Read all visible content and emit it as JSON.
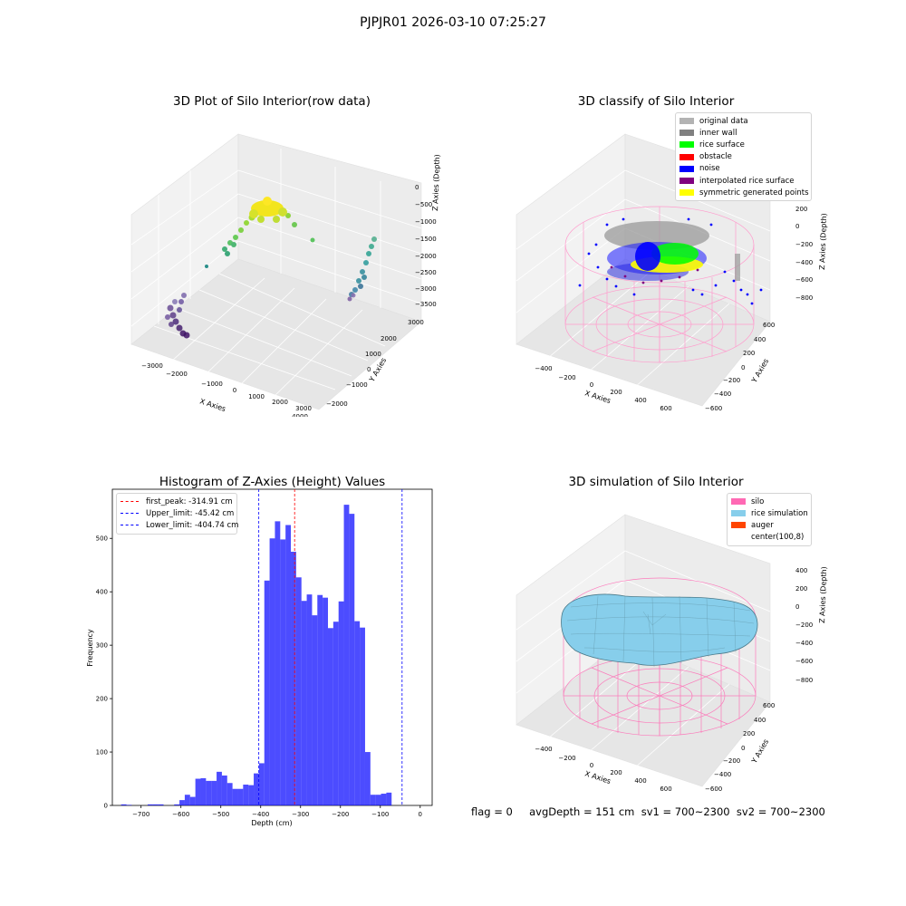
{
  "suptitle": "PJPJR01 2026-03-10 07:25:27",
  "panels": {
    "raw": {
      "title": "3D Plot of Silo Interior(row data)",
      "xlabel": "X Axies",
      "ylabel": "Y Axies",
      "zlabel": "Z Axies (Depth)",
      "x_ticks": [
        "−3000",
        "−2000",
        "−1000",
        "0",
        "1000",
        "2000",
        "3000",
        "4000"
      ],
      "y_ticks": [
        "3000",
        "2000",
        "1000",
        "0",
        "−1000",
        "−2000"
      ],
      "z_ticks": [
        "0",
        "−500",
        "−1000",
        "−1500",
        "−2000",
        "−2500",
        "−3000",
        "−3500"
      ]
    },
    "classify": {
      "title": "3D classify of Silo Interior",
      "xlabel": "X Axies",
      "ylabel": "Y Axies",
      "zlabel": "Z Axies (Depth)",
      "x_ticks": [
        "−400",
        "−200",
        "0",
        "200",
        "400",
        "600"
      ],
      "y_ticks": [
        "600",
        "400",
        "200",
        "0",
        "−200",
        "−400",
        "−600"
      ],
      "z_ticks": [
        "200",
        "0",
        "−200",
        "−400",
        "−600",
        "−800"
      ],
      "legend": [
        {
          "label": "original data",
          "color": "#b3b3b3"
        },
        {
          "label": "inner wall",
          "color": "#808080"
        },
        {
          "label": "rice surface",
          "color": "#00ff00"
        },
        {
          "label": "obstacle",
          "color": "#ff0000"
        },
        {
          "label": "noise",
          "color": "#0000ff"
        },
        {
          "label": "interpolated rice surface",
          "color": "#800080"
        },
        {
          "label": "symmetric generated points",
          "color": "#ffff00"
        }
      ]
    },
    "histogram": {
      "title": "Histogram of Z-Axies (Height) Values",
      "legend": [
        {
          "label": "first_peak: -314.91 cm",
          "color": "#ff0000"
        },
        {
          "label": "Upper_limit: -45.42 cm",
          "color": "#0000ff"
        },
        {
          "label": "Lower_limit: -404.74 cm",
          "color": "#0000ff"
        }
      ]
    },
    "simulation": {
      "title": "3D simulation of Silo Interior",
      "xlabel": "X Axies",
      "ylabel": "Y Axies",
      "zlabel": "Z Axies (Depth)",
      "x_ticks": [
        "−400",
        "−200",
        "0",
        "200",
        "400",
        "600"
      ],
      "y_ticks": [
        "600",
        "400",
        "200",
        "0",
        "−200",
        "−400",
        "−600"
      ],
      "z_ticks": [
        "400",
        "200",
        "0",
        "−200",
        "−400",
        "−600",
        "−800"
      ],
      "legend": [
        {
          "label": "silo",
          "color": "#ff69b4"
        },
        {
          "label": "rice simulation",
          "color": "#87ceeb"
        },
        {
          "label": "auger",
          "color": "#ff4500"
        },
        {
          "label": "center(100,8)",
          "color": "#ffffff"
        }
      ]
    }
  },
  "footer": {
    "text": "flag = 0     avgDepth = 151 cm  sv1 = 700~2300  sv2 = 700~2300"
  },
  "chart_data": {
    "type": "bar",
    "title": "Histogram of Z-Axies (Height) Values",
    "xlabel": "Depth (cm)",
    "ylabel": "Frequency",
    "xlim": [
      -772,
      30
    ],
    "ylim": [
      0,
      592
    ],
    "x_ticks": [
      -700,
      -600,
      -500,
      -400,
      -300,
      -200,
      -100,
      0
    ],
    "y_ticks": [
      0,
      100,
      200,
      300,
      400,
      500
    ],
    "bar_color": "#0000ff",
    "bin_width": 13.3,
    "bin_starts": [
      -750,
      -736.7,
      -723.4,
      -710.1,
      -696.8,
      -683.5,
      -670.2,
      -656.9,
      -643.6,
      -630.3,
      -617.0,
      -603.7,
      -590.4,
      -577.1,
      -563.8,
      -550.5,
      -537.2,
      -523.9,
      -510.6,
      -497.3,
      -484.0,
      -470.7,
      -457.4,
      -444.1,
      -430.8,
      -417.5,
      -404.2,
      -390.9,
      -377.6,
      -364.3,
      -351.0,
      -337.7,
      -324.4,
      -311.1,
      -297.8,
      -284.5,
      -271.2,
      -257.9,
      -244.6,
      -231.3,
      -218.0,
      -204.7,
      -191.4,
      -178.1,
      -164.8,
      -151.5,
      -138.2,
      -124.9,
      -111.6,
      -98.3,
      -85.0,
      -71.7,
      -58.4,
      -45.1,
      -31.8,
      -18.5,
      -5.2
    ],
    "values": [
      2,
      1,
      0,
      0,
      0,
      2,
      2,
      2,
      0,
      0,
      2,
      10,
      20,
      16,
      50,
      51,
      46,
      46,
      63,
      56,
      42,
      31,
      31,
      39,
      38,
      60,
      79,
      421,
      500,
      532,
      498,
      525,
      475,
      427,
      383,
      395,
      356,
      394,
      389,
      332,
      344,
      382,
      563,
      546,
      345,
      333,
      100,
      20,
      20,
      22,
      24,
      0,
      0,
      0,
      0,
      0,
      0
    ],
    "vlines": [
      {
        "name": "first_peak",
        "x": -314.91,
        "color": "#ff0000"
      },
      {
        "name": "Upper_limit",
        "x": -45.42,
        "color": "#0000ff"
      },
      {
        "name": "Lower_limit",
        "x": -404.74,
        "color": "#0000ff"
      }
    ]
  }
}
